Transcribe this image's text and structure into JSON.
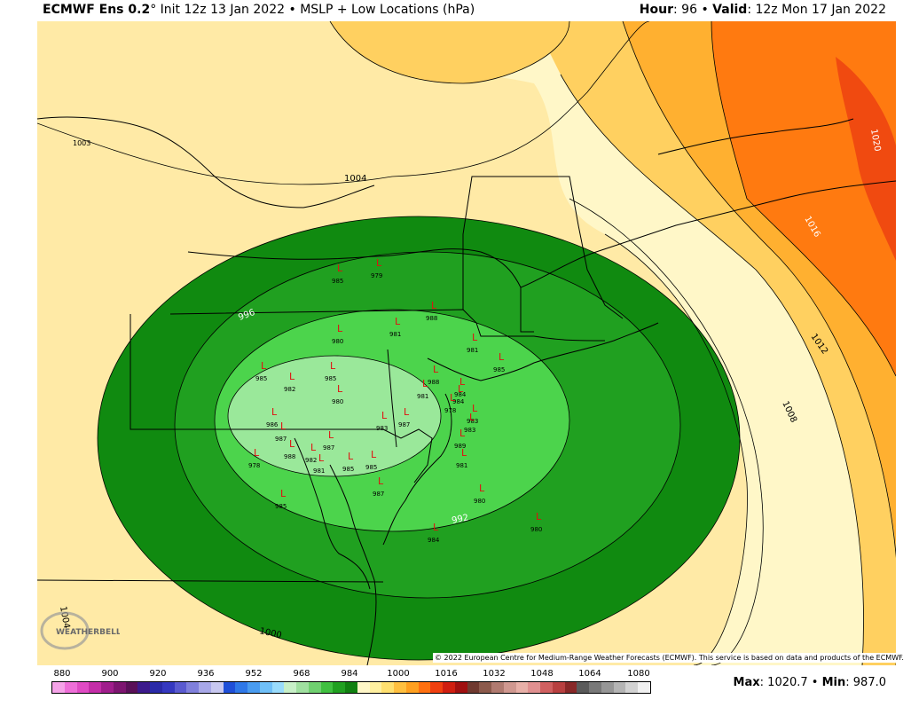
{
  "header": {
    "model": "ECMWF Ens 0.2",
    "degree": "°",
    "init": "Init 12z 13 Jan 2022",
    "bullet": "•",
    "field": "MSLP + Low Locations (hPa)",
    "hour_label": "Hour",
    "hour_value": ": 96",
    "valid_label": "Valid",
    "valid_value": ": 12z Mon 17 Jan 2022"
  },
  "contour_labels": {
    "c1004": "1004",
    "c996": "996",
    "c992": "992",
    "c1000": "1000",
    "c1008": "1008",
    "c1012": "1012",
    "c1016": "1016",
    "c1020": "1020",
    "c1004b": "1004",
    "c1003": "1003"
  },
  "low_marker": "L",
  "low_values": [
    "985",
    "979",
    "981",
    "980",
    "985",
    "982",
    "985",
    "980",
    "988",
    "984",
    "983",
    "985",
    "981",
    "988",
    "981",
    "987",
    "984",
    "978",
    "983",
    "989",
    "981",
    "980",
    "984",
    "980",
    "988",
    "986",
    "987",
    "978",
    "982",
    "985",
    "987",
    "985",
    "983",
    "985",
    "981",
    "987"
  ],
  "copyright": "© 2022 European Centre for Medium-Range Weather Forecasts (ECMWF). This service is based on data and products of the ECMWF.",
  "logo_text": "WEATHERBELL",
  "colorbar": {
    "ticks": [
      "880",
      "900",
      "920",
      "936",
      "952",
      "968",
      "984",
      "1000",
      "1016",
      "1032",
      "1048",
      "1064",
      "1080"
    ],
    "colors": [
      "#f5a3e8",
      "#ee6fd8",
      "#e04bc4",
      "#c42ea8",
      "#a01e8c",
      "#7d1570",
      "#5a1058",
      "#3c1a8c",
      "#2a2aa8",
      "#3538c0",
      "#5a5ad0",
      "#8080dc",
      "#a8a8e8",
      "#c8c8f0",
      "#1f4fd8",
      "#2f78e8",
      "#4a9cf0",
      "#70c0f8",
      "#9adcfc",
      "#c8f0c8",
      "#a0e0a0",
      "#70d070",
      "#40c040",
      "#20a020",
      "#108010",
      "#fff7c8",
      "#fff0a0",
      "#ffe070",
      "#ffc040",
      "#ffa020",
      "#ff7010",
      "#f04010",
      "#d01e10",
      "#a01010",
      "#703a30",
      "#8c5a4c",
      "#b07a70",
      "#d09890",
      "#e8b0a8",
      "#e09090",
      "#d06060",
      "#b84040",
      "#882828",
      "#5a5a5a",
      "#787878",
      "#969696",
      "#b4b4b4",
      "#d2d2d2",
      "#f0f0f0"
    ]
  },
  "stats": {
    "max_label": "Max",
    "max_value": ": 1020.7",
    "min_label": "Min",
    "min_value": ": 987.0"
  }
}
